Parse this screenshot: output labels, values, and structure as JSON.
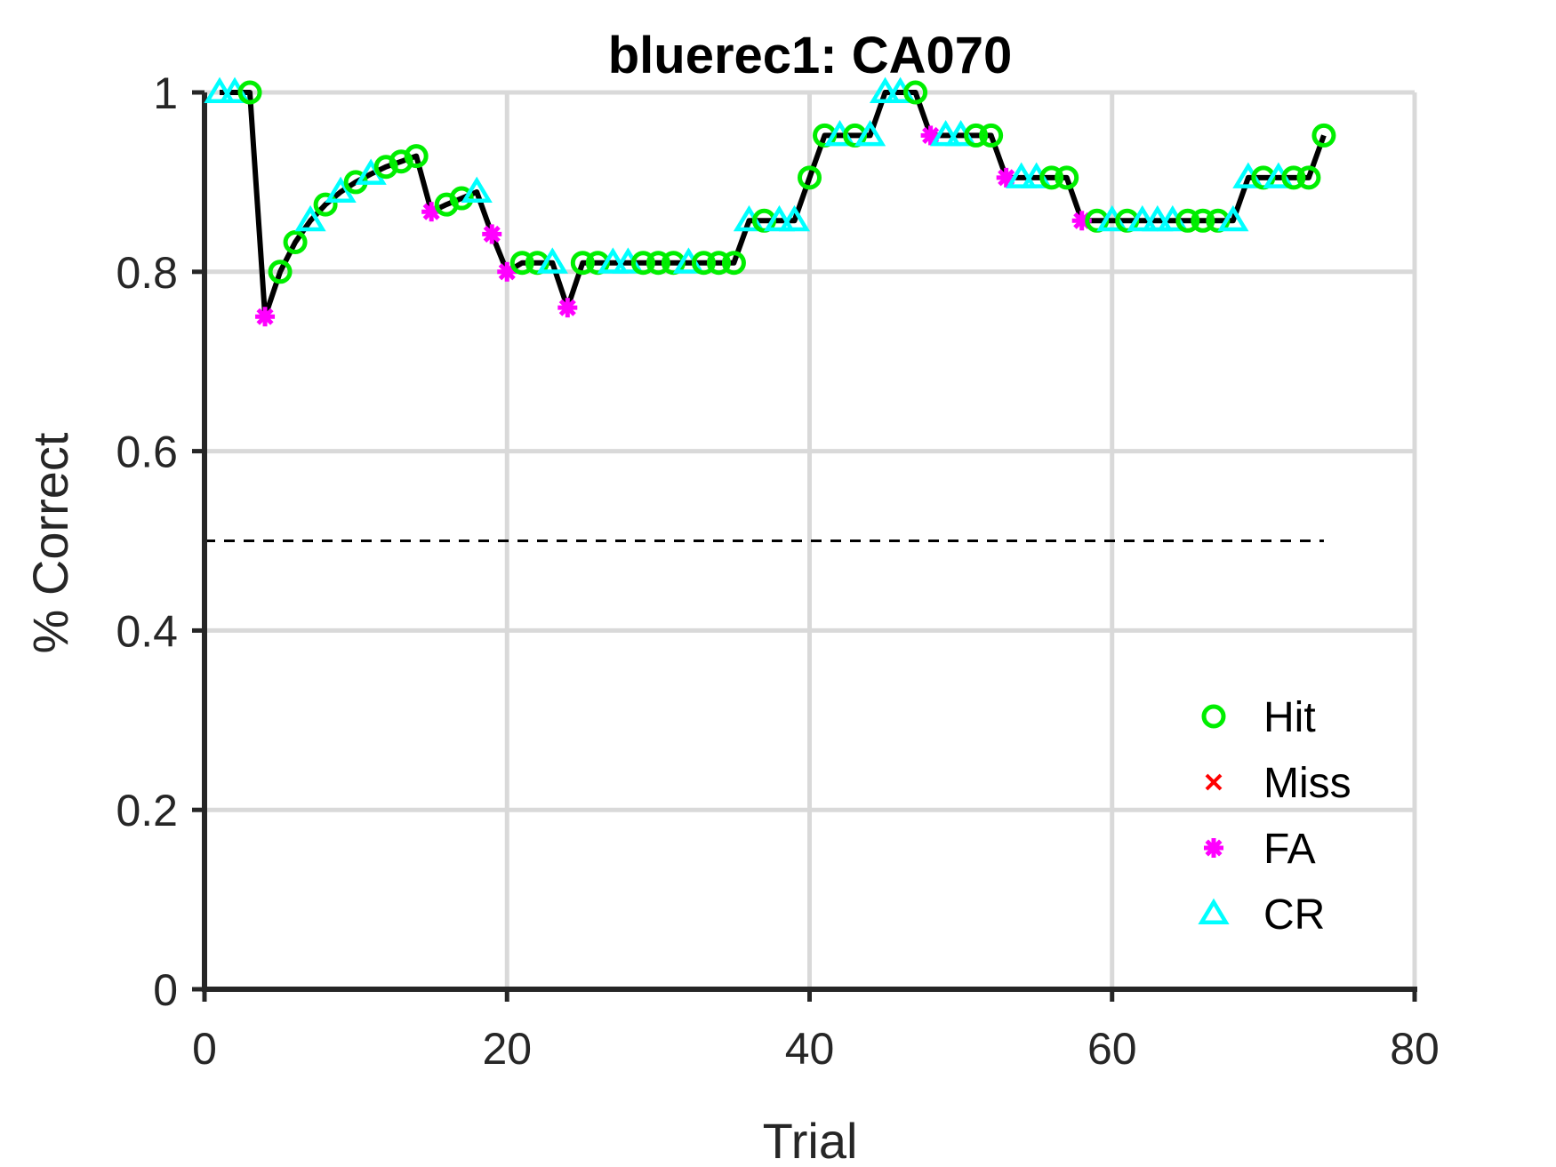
{
  "chart_data": {
    "type": "line",
    "title": "bluerec1: CA070",
    "xlabel": "Trial",
    "ylabel": "% Correct",
    "xlim": [
      0,
      80
    ],
    "ylim": [
      0,
      1
    ],
    "x_ticks": [
      "0",
      "20",
      "40",
      "60",
      "80"
    ],
    "y_ticks": [
      "0",
      "0.2",
      "0.4",
      "0.6",
      "0.8",
      "1"
    ],
    "grid": true,
    "chance_level": 0.5,
    "chance_level_x_range": [
      0,
      74
    ],
    "legend_position": "bottom-right",
    "colors": {
      "line": "#000000",
      "Hit": "#00ee00",
      "Miss": "#ff0000",
      "FA": "#ff00ff",
      "CR": "#00ffff",
      "grid": "#d9d9d9",
      "axis": "#262626"
    },
    "legend": [
      {
        "name": "Hit",
        "marker": "circle"
      },
      {
        "name": "Miss",
        "marker": "x"
      },
      {
        "name": "FA",
        "marker": "asterisk"
      },
      {
        "name": "CR",
        "marker": "triangle"
      }
    ],
    "points": [
      {
        "x": 1,
        "y": 1.0,
        "outcome": "CR"
      },
      {
        "x": 2,
        "y": 1.0,
        "outcome": "CR"
      },
      {
        "x": 3,
        "y": 1.0,
        "outcome": "Hit"
      },
      {
        "x": 4,
        "y": 0.75,
        "outcome": "FA"
      },
      {
        "x": 5,
        "y": 0.8,
        "outcome": "Hit"
      },
      {
        "x": 6,
        "y": 0.833,
        "outcome": "Hit"
      },
      {
        "x": 7,
        "y": 0.857,
        "outcome": "CR"
      },
      {
        "x": 8,
        "y": 0.875,
        "outcome": "Hit"
      },
      {
        "x": 9,
        "y": 0.889,
        "outcome": "CR"
      },
      {
        "x": 10,
        "y": 0.9,
        "outcome": "Hit"
      },
      {
        "x": 11,
        "y": 0.909,
        "outcome": "CR"
      },
      {
        "x": 12,
        "y": 0.917,
        "outcome": "Hit"
      },
      {
        "x": 13,
        "y": 0.923,
        "outcome": "Hit"
      },
      {
        "x": 14,
        "y": 0.929,
        "outcome": "Hit"
      },
      {
        "x": 15,
        "y": 0.867,
        "outcome": "FA"
      },
      {
        "x": 16,
        "y": 0.875,
        "outcome": "Hit"
      },
      {
        "x": 17,
        "y": 0.882,
        "outcome": "Hit"
      },
      {
        "x": 18,
        "y": 0.889,
        "outcome": "CR"
      },
      {
        "x": 19,
        "y": 0.842,
        "outcome": "FA"
      },
      {
        "x": 20,
        "y": 0.8,
        "outcome": "FA"
      },
      {
        "x": 21,
        "y": 0.81,
        "outcome": "Hit"
      },
      {
        "x": 22,
        "y": 0.81,
        "outcome": "Hit"
      },
      {
        "x": 23,
        "y": 0.81,
        "outcome": "CR"
      },
      {
        "x": 24,
        "y": 0.76,
        "outcome": "FA"
      },
      {
        "x": 25,
        "y": 0.81,
        "outcome": "Hit"
      },
      {
        "x": 26,
        "y": 0.81,
        "outcome": "Hit"
      },
      {
        "x": 27,
        "y": 0.81,
        "outcome": "CR"
      },
      {
        "x": 28,
        "y": 0.81,
        "outcome": "CR"
      },
      {
        "x": 29,
        "y": 0.81,
        "outcome": "Hit"
      },
      {
        "x": 30,
        "y": 0.81,
        "outcome": "Hit"
      },
      {
        "x": 31,
        "y": 0.81,
        "outcome": "Hit"
      },
      {
        "x": 32,
        "y": 0.81,
        "outcome": "CR"
      },
      {
        "x": 33,
        "y": 0.81,
        "outcome": "Hit"
      },
      {
        "x": 34,
        "y": 0.81,
        "outcome": "Hit"
      },
      {
        "x": 35,
        "y": 0.81,
        "outcome": "Hit"
      },
      {
        "x": 36,
        "y": 0.857,
        "outcome": "CR"
      },
      {
        "x": 37,
        "y": 0.857,
        "outcome": "Hit"
      },
      {
        "x": 38,
        "y": 0.857,
        "outcome": "CR"
      },
      {
        "x": 39,
        "y": 0.857,
        "outcome": "CR"
      },
      {
        "x": 40,
        "y": 0.905,
        "outcome": "Hit"
      },
      {
        "x": 41,
        "y": 0.952,
        "outcome": "Hit"
      },
      {
        "x": 42,
        "y": 0.952,
        "outcome": "CR"
      },
      {
        "x": 43,
        "y": 0.952,
        "outcome": "Hit"
      },
      {
        "x": 44,
        "y": 0.952,
        "outcome": "CR"
      },
      {
        "x": 45,
        "y": 1.0,
        "outcome": "CR"
      },
      {
        "x": 46,
        "y": 1.0,
        "outcome": "CR"
      },
      {
        "x": 47,
        "y": 1.0,
        "outcome": "Hit"
      },
      {
        "x": 48,
        "y": 0.952,
        "outcome": "FA"
      },
      {
        "x": 49,
        "y": 0.952,
        "outcome": "CR"
      },
      {
        "x": 50,
        "y": 0.952,
        "outcome": "CR"
      },
      {
        "x": 51,
        "y": 0.952,
        "outcome": "Hit"
      },
      {
        "x": 52,
        "y": 0.952,
        "outcome": "Hit"
      },
      {
        "x": 53,
        "y": 0.905,
        "outcome": "FA"
      },
      {
        "x": 54,
        "y": 0.905,
        "outcome": "CR"
      },
      {
        "x": 55,
        "y": 0.905,
        "outcome": "CR"
      },
      {
        "x": 56,
        "y": 0.905,
        "outcome": "Hit"
      },
      {
        "x": 57,
        "y": 0.905,
        "outcome": "Hit"
      },
      {
        "x": 58,
        "y": 0.857,
        "outcome": "FA"
      },
      {
        "x": 59,
        "y": 0.857,
        "outcome": "Hit"
      },
      {
        "x": 60,
        "y": 0.857,
        "outcome": "CR"
      },
      {
        "x": 61,
        "y": 0.857,
        "outcome": "Hit"
      },
      {
        "x": 62,
        "y": 0.857,
        "outcome": "CR"
      },
      {
        "x": 63,
        "y": 0.857,
        "outcome": "CR"
      },
      {
        "x": 64,
        "y": 0.857,
        "outcome": "CR"
      },
      {
        "x": 65,
        "y": 0.857,
        "outcome": "Hit"
      },
      {
        "x": 66,
        "y": 0.857,
        "outcome": "Hit"
      },
      {
        "x": 67,
        "y": 0.857,
        "outcome": "Hit"
      },
      {
        "x": 68,
        "y": 0.857,
        "outcome": "CR"
      },
      {
        "x": 69,
        "y": 0.905,
        "outcome": "CR"
      },
      {
        "x": 70,
        "y": 0.905,
        "outcome": "Hit"
      },
      {
        "x": 71,
        "y": 0.905,
        "outcome": "CR"
      },
      {
        "x": 72,
        "y": 0.905,
        "outcome": "Hit"
      },
      {
        "x": 73,
        "y": 0.905,
        "outcome": "Hit"
      },
      {
        "x": 74,
        "y": 0.952,
        "outcome": "Hit"
      }
    ]
  }
}
